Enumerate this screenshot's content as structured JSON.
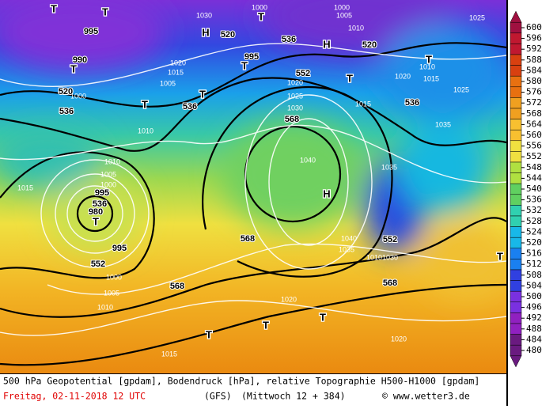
{
  "map": {
    "labels": [
      "T",
      "T",
      "995",
      "H",
      "520",
      "1030",
      "1000",
      "T",
      "536",
      "H",
      "1000",
      "1005",
      "1010",
      "520",
      "1025",
      "990",
      "T",
      "1020",
      "1015",
      "995",
      "T",
      "552",
      "T",
      "T",
      "1010",
      "1015",
      "1020",
      "1025",
      "520",
      "1000",
      "536",
      "T",
      "1005",
      "536",
      "T",
      "1020",
      "1025",
      "1030",
      "568",
      "1015",
      "536",
      "1035",
      "1010",
      "1010",
      "1005",
      "1000",
      "995",
      "1015",
      "536",
      "980",
      "T",
      "1040",
      "H",
      "1035",
      "568",
      "552",
      "995",
      "552",
      "1040",
      "1035",
      "1010",
      "1030",
      "1000",
      "568",
      "1005",
      "568",
      "1010",
      "1020",
      "T",
      "T",
      "T",
      "1015",
      "1020",
      "T"
    ]
  },
  "colorbar": {
    "ticks": [
      600,
      596,
      592,
      588,
      584,
      580,
      576,
      572,
      568,
      564,
      560,
      556,
      552,
      548,
      544,
      540,
      536,
      532,
      528,
      524,
      520,
      516,
      512,
      508,
      504,
      500,
      496,
      492,
      488,
      484,
      480
    ]
  },
  "footer": {
    "line1": "500 hPa Geopotential [gpdam], Bodendruck [hPa], relative Topographie H500-H1000 [gpdam]",
    "date": "Freitag, 02-11-2018  12 UTC",
    "model": "(GFS)",
    "run": "(Mittwoch 12 + 384)",
    "credit": "© www.wetter3.de"
  }
}
